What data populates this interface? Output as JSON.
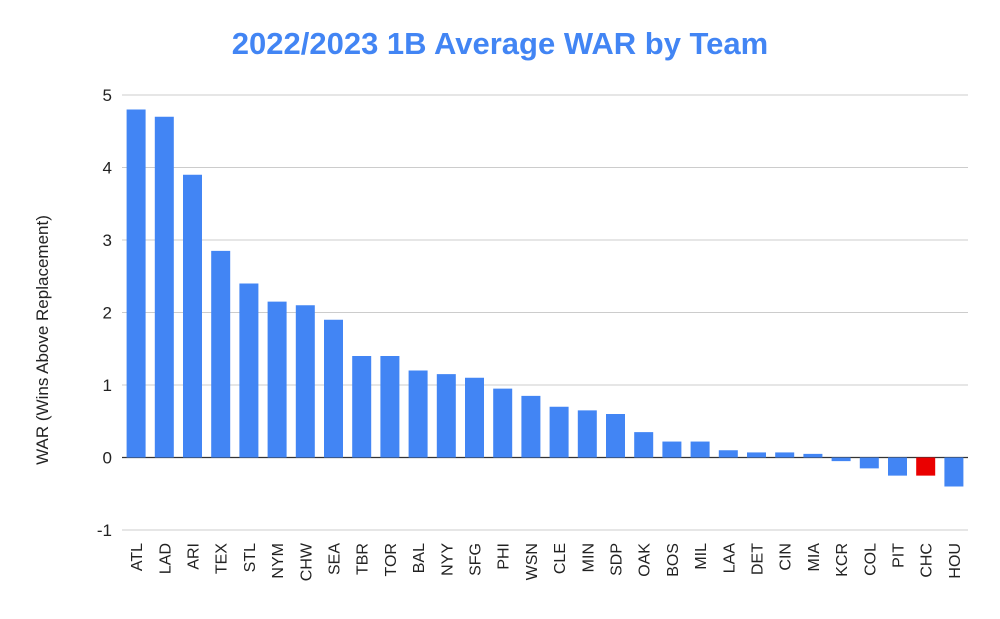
{
  "chart_data": {
    "type": "bar",
    "title": "2022/2023 1B Average WAR by Team",
    "xlabel": "",
    "ylabel": "WAR (Wins Above Replacement)",
    "ylim": [
      -1,
      5
    ],
    "yticks": [
      5,
      4,
      3,
      2,
      1,
      0,
      -1
    ],
    "grid": true,
    "legend": "none",
    "bar_color": "#4285f4",
    "highlight_color": "#ea0000",
    "highlight_category": "CHC",
    "categories": [
      "ATL",
      "LAD",
      "ARI",
      "TEX",
      "STL",
      "NYM",
      "CHW",
      "SEA",
      "TBR",
      "TOR",
      "BAL",
      "NYY",
      "SFG",
      "PHI",
      "WSN",
      "CLE",
      "MIN",
      "SDP",
      "OAK",
      "BOS",
      "MIL",
      "LAA",
      "DET",
      "CIN",
      "MIA",
      "KCR",
      "COL",
      "PIT",
      "CHC",
      "HOU"
    ],
    "values": [
      4.8,
      4.7,
      3.9,
      2.85,
      2.4,
      2.15,
      2.1,
      1.9,
      1.4,
      1.4,
      1.2,
      1.15,
      1.1,
      0.95,
      0.85,
      0.7,
      0.65,
      0.6,
      0.35,
      0.22,
      0.22,
      0.1,
      0.07,
      0.07,
      0.05,
      -0.05,
      -0.15,
      -0.25,
      -0.25,
      -0.4
    ]
  }
}
